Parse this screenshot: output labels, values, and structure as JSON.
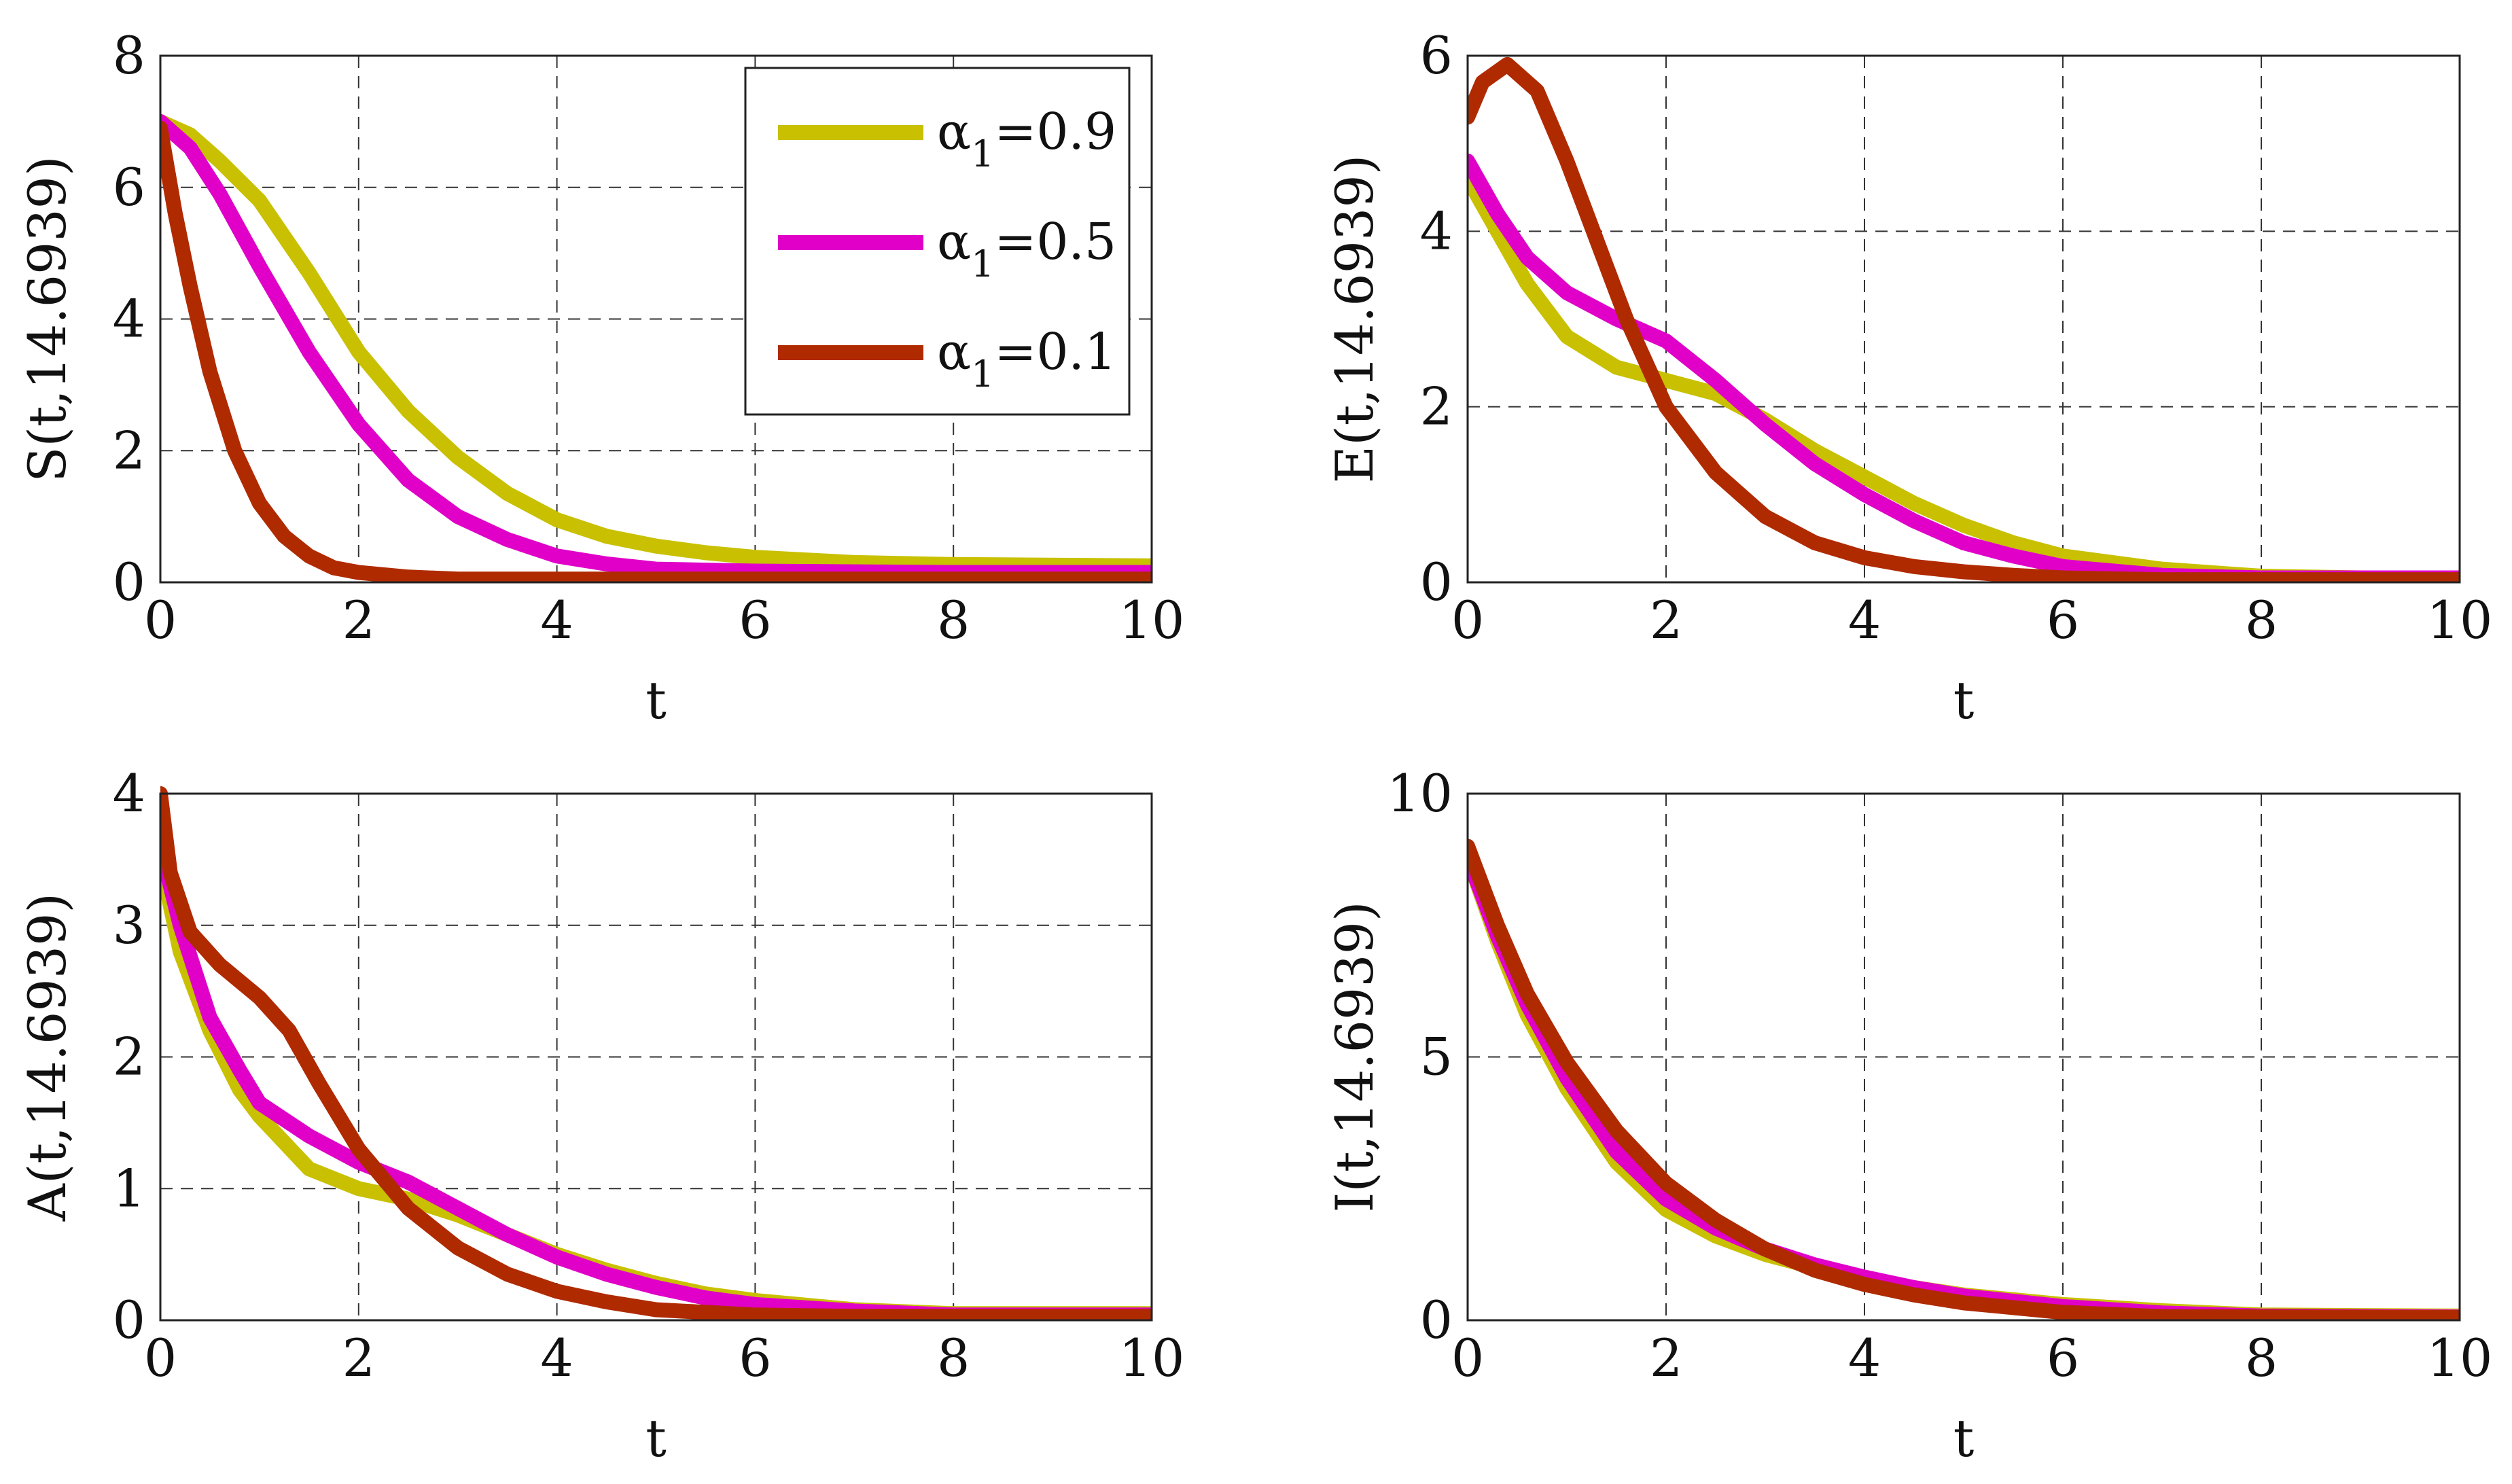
{
  "chart_data": [
    {
      "type": "line",
      "id": "S",
      "ylabel": "S(t,14.6939)",
      "xlabel": "t",
      "xlim": [
        0,
        10
      ],
      "ylim": [
        0,
        8
      ],
      "xticks": [
        "0",
        "2",
        "4",
        "6",
        "8",
        "10"
      ],
      "yticks": [
        "0",
        "2",
        "4",
        "6",
        "8"
      ],
      "grid": true,
      "legend": {
        "placement": "top-right",
        "entries": [
          {
            "symbol": "α",
            "sub": "1",
            "value": "=0.9",
            "color": "#c8c000"
          },
          {
            "symbol": "α",
            "sub": "1",
            "value": "=0.5",
            "color": "#e000c8"
          },
          {
            "symbol": "α",
            "sub": "1",
            "value": "=0.1",
            "color": "#b02a00"
          }
        ]
      },
      "series": [
        {
          "name": "α1=0.9",
          "color": "#c8c000",
          "x": [
            0,
            0.3,
            0.6,
            1,
            1.5,
            2,
            2.5,
            3,
            3.5,
            4,
            4.5,
            5,
            5.5,
            6,
            7,
            8,
            10
          ],
          "y": [
            7,
            6.8,
            6.4,
            5.8,
            4.7,
            3.5,
            2.6,
            1.9,
            1.35,
            0.95,
            0.7,
            0.55,
            0.45,
            0.38,
            0.3,
            0.27,
            0.25
          ]
        },
        {
          "name": "α1=0.5",
          "color": "#e000c8",
          "x": [
            0,
            0.3,
            0.6,
            1,
            1.5,
            2,
            2.5,
            3,
            3.5,
            4,
            4.5,
            5,
            6,
            8,
            10
          ],
          "y": [
            7,
            6.6,
            5.9,
            4.8,
            3.5,
            2.4,
            1.55,
            1.0,
            0.65,
            0.4,
            0.28,
            0.2,
            0.17,
            0.15,
            0.15
          ]
        },
        {
          "name": "α1=0.1",
          "color": "#b02a00",
          "x": [
            0,
            0.15,
            0.3,
            0.5,
            0.75,
            1,
            1.25,
            1.5,
            1.75,
            2,
            2.5,
            3,
            10
          ],
          "y": [
            6.9,
            5.6,
            4.5,
            3.2,
            2.0,
            1.2,
            0.7,
            0.4,
            0.22,
            0.15,
            0.08,
            0.05,
            0.05
          ]
        }
      ]
    },
    {
      "type": "line",
      "id": "E",
      "ylabel": "E(t,14.6939)",
      "xlabel": "t",
      "xlim": [
        0,
        10
      ],
      "ylim": [
        0,
        6
      ],
      "xticks": [
        "0",
        "2",
        "4",
        "6",
        "8",
        "10"
      ],
      "yticks": [
        "0",
        "2",
        "4",
        "6"
      ],
      "grid": true,
      "series": [
        {
          "name": "α1=0.9",
          "color": "#c8c000",
          "x": [
            0,
            0.3,
            0.6,
            1,
            1.5,
            2,
            2.5,
            3,
            3.5,
            4,
            4.5,
            5,
            5.5,
            6,
            7,
            8,
            9,
            10
          ],
          "y": [
            4.6,
            4.0,
            3.4,
            2.8,
            2.45,
            2.3,
            2.15,
            1.85,
            1.5,
            1.2,
            0.9,
            0.65,
            0.45,
            0.3,
            0.15,
            0.07,
            0.05,
            0.05
          ]
        },
        {
          "name": "α1=0.5",
          "color": "#e000c8",
          "x": [
            0,
            0.3,
            0.6,
            1,
            1.5,
            2,
            2.5,
            3,
            3.5,
            4,
            4.5,
            5,
            5.5,
            6,
            7,
            8,
            10
          ],
          "y": [
            4.8,
            4.2,
            3.7,
            3.3,
            3.0,
            2.75,
            2.3,
            1.8,
            1.35,
            1.0,
            0.7,
            0.45,
            0.3,
            0.18,
            0.08,
            0.05,
            0.05
          ]
        },
        {
          "name": "α1=0.1",
          "color": "#b02a00",
          "x": [
            0,
            0.15,
            0.4,
            0.7,
            1,
            1.3,
            1.6,
            2,
            2.5,
            3,
            3.5,
            4,
            4.5,
            5,
            5.5,
            6,
            7,
            10
          ],
          "y": [
            5.3,
            5.7,
            5.9,
            5.6,
            4.8,
            3.9,
            3.0,
            2.0,
            1.25,
            0.75,
            0.45,
            0.28,
            0.18,
            0.12,
            0.08,
            0.05,
            0.03,
            0.03
          ]
        }
      ]
    },
    {
      "type": "line",
      "id": "A",
      "ylabel": "A(t,14.6939)",
      "xlabel": "t",
      "xlim": [
        0,
        10
      ],
      "ylim": [
        0,
        4
      ],
      "xticks": [
        "0",
        "2",
        "4",
        "6",
        "8",
        "10"
      ],
      "yticks": [
        "0",
        "1",
        "2",
        "3",
        "4"
      ],
      "grid": true,
      "series": [
        {
          "name": "α1=0.9",
          "color": "#c8c000",
          "x": [
            0,
            0.2,
            0.5,
            0.8,
            1,
            1.5,
            2,
            2.5,
            3,
            3.5,
            4,
            4.5,
            5,
            5.5,
            6,
            7,
            8,
            10
          ],
          "y": [
            3.5,
            2.8,
            2.2,
            1.75,
            1.55,
            1.15,
            1.0,
            0.92,
            0.8,
            0.65,
            0.5,
            0.38,
            0.28,
            0.2,
            0.15,
            0.08,
            0.05,
            0.05
          ]
        },
        {
          "name": "α1=0.5",
          "color": "#e000c8",
          "x": [
            0,
            0.2,
            0.5,
            0.8,
            1,
            1.5,
            2,
            2.5,
            3,
            3.5,
            4,
            4.5,
            5,
            5.5,
            6,
            7,
            8,
            10
          ],
          "y": [
            3.6,
            3.0,
            2.3,
            1.9,
            1.65,
            1.4,
            1.2,
            1.05,
            0.85,
            0.65,
            0.48,
            0.35,
            0.25,
            0.17,
            0.12,
            0.07,
            0.04,
            0.04
          ]
        },
        {
          "name": "α1=0.1",
          "color": "#b02a00",
          "x": [
            0,
            0.1,
            0.3,
            0.6,
            1,
            1.3,
            1.6,
            2,
            2.5,
            3,
            3.5,
            4,
            4.5,
            5,
            6,
            7,
            10
          ],
          "y": [
            4.0,
            3.4,
            2.95,
            2.7,
            2.45,
            2.2,
            1.8,
            1.3,
            0.85,
            0.55,
            0.35,
            0.22,
            0.14,
            0.08,
            0.04,
            0.03,
            0.03
          ]
        }
      ]
    },
    {
      "type": "line",
      "id": "I",
      "ylabel": "I(t,14.6939)",
      "xlabel": "t",
      "xlim": [
        0,
        10
      ],
      "ylim": [
        0,
        10
      ],
      "xticks": [
        "0",
        "2",
        "4",
        "6",
        "8",
        "10"
      ],
      "yticks": [
        "0",
        "5",
        "10"
      ],
      "grid": true,
      "series": [
        {
          "name": "α1=0.9",
          "color": "#c8c000",
          "x": [
            0,
            0.3,
            0.6,
            1,
            1.5,
            2,
            2.5,
            3,
            3.5,
            4,
            4.5,
            5,
            6,
            7,
            8,
            10
          ],
          "y": [
            8.8,
            7.2,
            5.8,
            4.4,
            3.0,
            2.1,
            1.6,
            1.25,
            1.0,
            0.8,
            0.62,
            0.48,
            0.3,
            0.18,
            0.1,
            0.08
          ]
        },
        {
          "name": "α1=0.5",
          "color": "#e000c8",
          "x": [
            0,
            0.3,
            0.6,
            1,
            1.5,
            2,
            2.5,
            3,
            3.5,
            4,
            4.5,
            5,
            6,
            7,
            8,
            10
          ],
          "y": [
            8.8,
            7.3,
            6.0,
            4.6,
            3.2,
            2.3,
            1.75,
            1.35,
            1.05,
            0.82,
            0.62,
            0.46,
            0.26,
            0.14,
            0.08,
            0.06
          ]
        },
        {
          "name": "α1=0.1",
          "color": "#b02a00",
          "x": [
            0,
            0.3,
            0.6,
            1,
            1.5,
            2,
            2.5,
            3,
            3.5,
            4,
            4.5,
            5,
            6,
            7,
            10
          ],
          "y": [
            9.0,
            7.5,
            6.2,
            4.9,
            3.6,
            2.6,
            1.9,
            1.35,
            0.95,
            0.68,
            0.48,
            0.33,
            0.15,
            0.07,
            0.05
          ]
        }
      ]
    }
  ]
}
